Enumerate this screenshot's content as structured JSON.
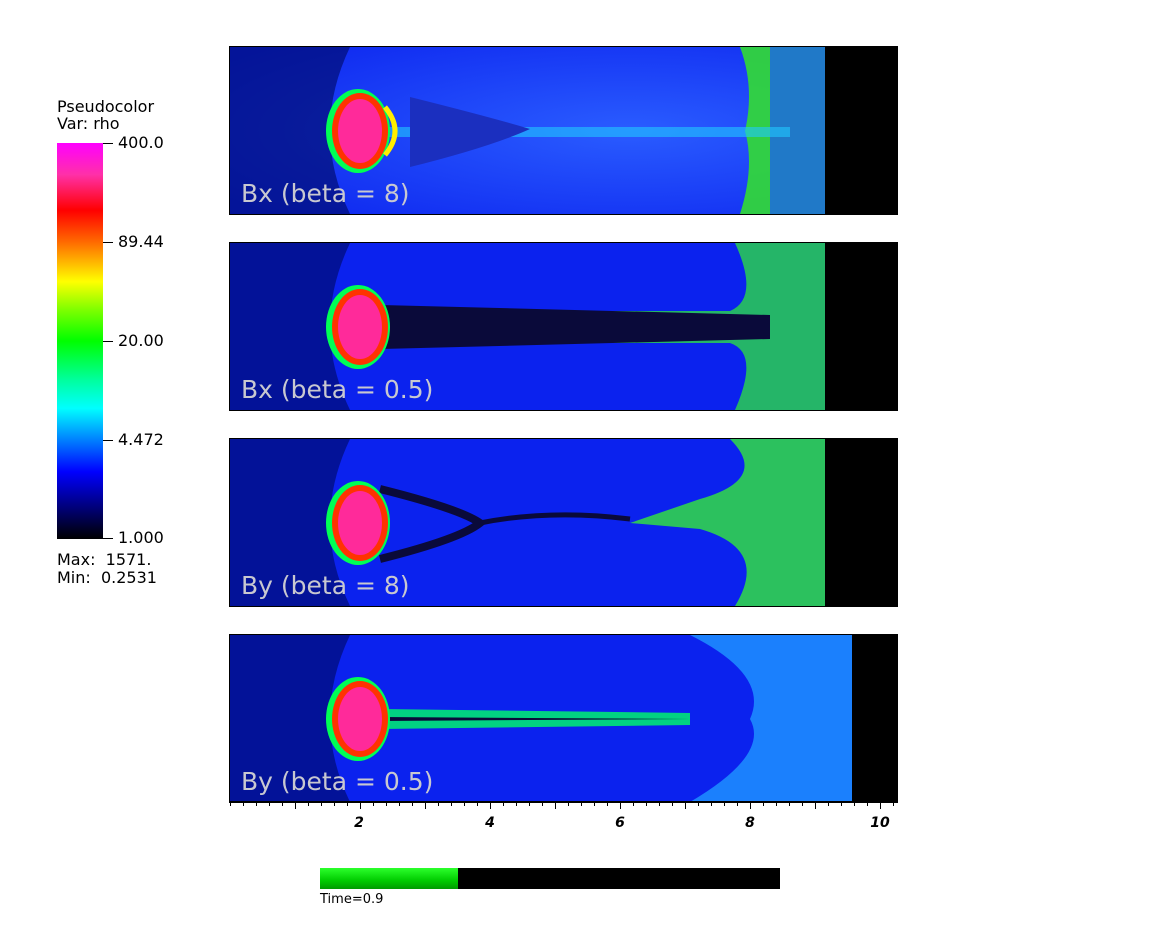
{
  "legend": {
    "title_line1": "Pseudocolor",
    "title_line2": "Var: rho",
    "ticks": [
      "400.0",
      "89.44",
      "20.00",
      "4.472",
      "1.000"
    ],
    "max_text": "Max:  1571.",
    "min_text": "Min:  0.2531",
    "colormap": [
      "#ff00ff",
      "#ff0000",
      "#ffff00",
      "#00ff00",
      "#00ffff",
      "#0000ff",
      "#000000"
    ]
  },
  "panels": [
    {
      "label": "Bx (beta = 8)"
    },
    {
      "label": "Bx (beta = 0.5)"
    },
    {
      "label": "By (beta = 8)"
    },
    {
      "label": "By (beta = 0.5)"
    }
  ],
  "axis": {
    "tick_labels": [
      "2",
      "4",
      "6",
      "8",
      "10"
    ]
  },
  "time": {
    "label": "Time=0.9",
    "progress_fraction": 0.3
  },
  "colors": {
    "background_blue": "#0b22ee",
    "outer_black": "#000000",
    "bow_shock_magenta": "#ff20c0"
  }
}
